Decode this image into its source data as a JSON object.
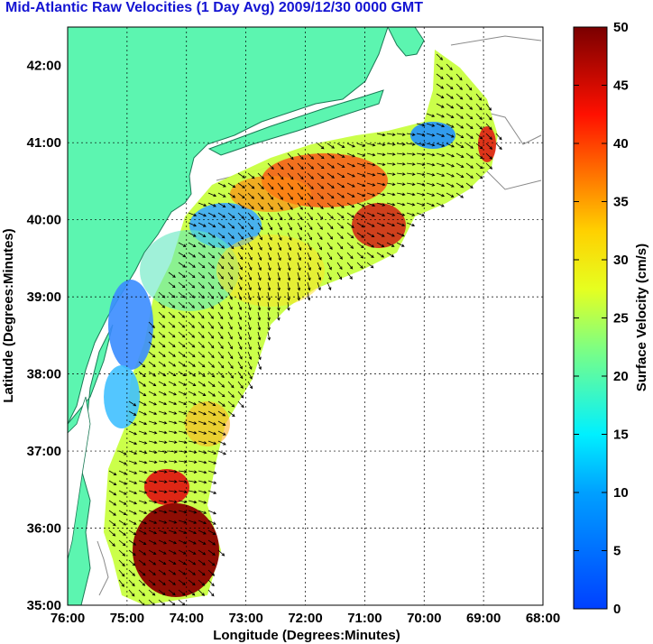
{
  "title": "Mid-Atlantic Raw Velocities (1 Day Avg) 2009/12/30 0000 GMT",
  "map": {
    "xlabel": "Longitude (Degrees:Minutes)",
    "ylabel": "Latitude (Degrees:Minutes)",
    "x_ticks": [
      "76:00",
      "75:00",
      "74:00",
      "73:00",
      "72:00",
      "71:00",
      "70:00",
      "69:00",
      "68:00"
    ],
    "y_ticks": [
      "42:00",
      "41:00",
      "40:00",
      "39:00",
      "38:00",
      "37:00",
      "36:00",
      "35:00"
    ],
    "lon_range": [
      -76,
      -68
    ],
    "lat_range": [
      35,
      42.5
    ],
    "grid": "dotted",
    "land_color": "#5cf5b0"
  },
  "colorbar": {
    "label": "Surface Velocity (cm/s)",
    "ticks": [
      "50",
      "45",
      "40",
      "35",
      "30",
      "25",
      "20",
      "15",
      "10",
      "5",
      "0"
    ],
    "range": [
      0,
      50
    ],
    "colormap": "jet"
  }
}
